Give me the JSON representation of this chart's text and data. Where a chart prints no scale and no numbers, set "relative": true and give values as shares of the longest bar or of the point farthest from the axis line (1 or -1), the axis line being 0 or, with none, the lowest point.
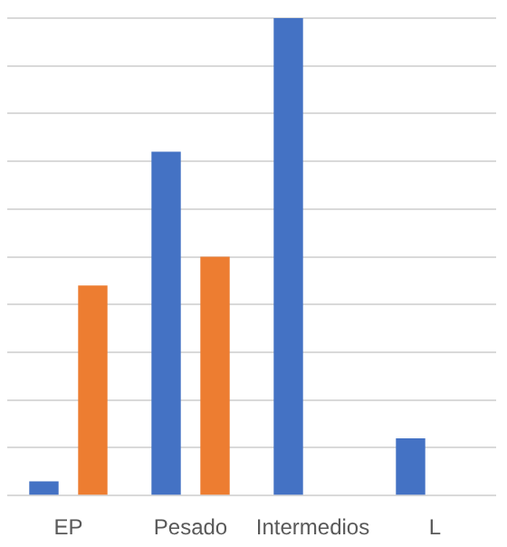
{
  "chart_data": {
    "type": "bar",
    "relative": true,
    "categories": [
      "EP",
      "Pesado",
      "Intermedios",
      "L"
    ],
    "series": [
      {
        "color": "#4472c4",
        "values": [
          0.03,
          0.72,
          1,
          0.12
        ]
      },
      {
        "color": "#ed7d31",
        "values": [
          0.44,
          0.5,
          0,
          null
        ]
      }
    ],
    "grid": "y"
  }
}
